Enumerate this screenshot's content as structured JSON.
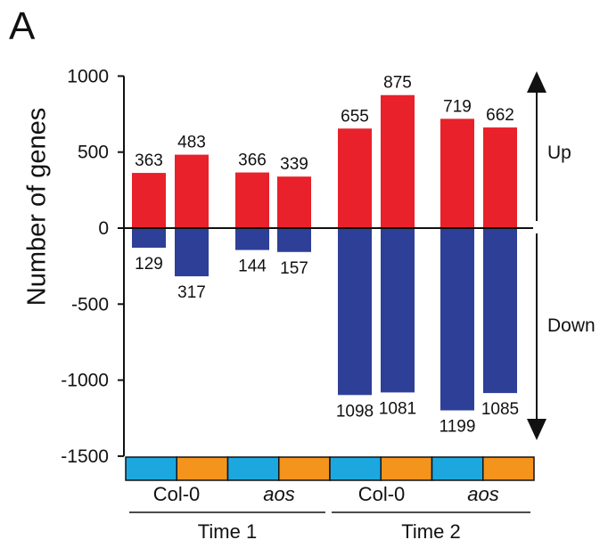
{
  "panel_label": "A",
  "direction_labels": {
    "up": "Up",
    "down": "Down"
  },
  "colors": {
    "up": "#e8212a",
    "down": "#2e3f98",
    "time_a": "#1ca8df",
    "time_b": "#f4941d",
    "axis": "#111111"
  },
  "chart_data": {
    "type": "bar",
    "ylabel": "Number  of genes",
    "ylim": [
      -1500,
      1000
    ],
    "yticks": [
      1000,
      500,
      0,
      -500,
      -1000,
      -1500
    ],
    "groups": [
      {
        "genotype": "Col-0",
        "time": "Time 1",
        "italic": false
      },
      {
        "genotype": "aos",
        "time": "Time 1",
        "italic": true
      },
      {
        "genotype": "Col-0",
        "time": "Time 2",
        "italic": false
      },
      {
        "genotype": "aos",
        "time": "Time 2",
        "italic": true
      }
    ],
    "time_labels": [
      "Time 1",
      "Time 2"
    ],
    "bar_colors": [
      "#1ca8df",
      "#f4941d",
      "#1ca8df",
      "#f4941d",
      "#1ca8df",
      "#f4941d",
      "#1ca8df",
      "#f4941d"
    ],
    "series": [
      {
        "direction": "up",
        "values": [
          363,
          483,
          366,
          339,
          655,
          875,
          719,
          662
        ]
      },
      {
        "direction": "down",
        "values": [
          -129,
          -317,
          -144,
          -157,
          -1098,
          -1081,
          -1199,
          -1085
        ]
      }
    ],
    "data_labels": {
      "up": [
        "363",
        "483",
        "366",
        "339",
        "655",
        "875",
        "719",
        "662"
      ],
      "down": [
        "129",
        "317",
        "144",
        "157",
        "1098",
        "1081",
        "1199",
        "1085"
      ]
    }
  }
}
